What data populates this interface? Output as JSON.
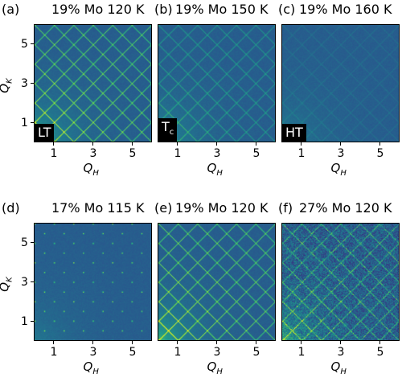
{
  "figure": {
    "axis": {
      "xlabel": "Q_H",
      "ylabel": "Q_K",
      "ticks": [
        "1",
        "3",
        "5"
      ],
      "range": [
        0,
        6
      ]
    },
    "panels": [
      {
        "label": "(a)",
        "title": "19% Mo 120 K",
        "phase": "LT",
        "pattern": "grid",
        "intensity": 1.0,
        "speckle": 0.05
      },
      {
        "label": "(b)",
        "title": "19% Mo 150 K",
        "phase": "T",
        "phase_sub": "c",
        "pattern": "grid",
        "intensity": 0.55,
        "speckle": 0.05
      },
      {
        "label": "(c)",
        "title": "19% Mo 160 K",
        "phase": "HT",
        "pattern": "grid",
        "intensity": 0.18,
        "speckle": 0.05
      },
      {
        "label": "(d)",
        "title": "17% Mo 115 K",
        "phase": "",
        "pattern": "dots",
        "intensity": 1.0,
        "speckle": 0.05
      },
      {
        "label": "(e)",
        "title": "19% Mo 120 K",
        "phase": "",
        "pattern": "grid",
        "intensity": 1.0,
        "speckle": 0.05
      },
      {
        "label": "(f)",
        "title": "27% Mo 120 K",
        "phase": "",
        "pattern": "grid",
        "intensity": 0.8,
        "speckle": 0.35
      }
    ]
  },
  "chart_data": {
    "type": "heatmap",
    "xlabel": "Q_H",
    "ylabel": "Q_K",
    "xlim": [
      0,
      6
    ],
    "ylim": [
      0,
      6
    ],
    "xticks": [
      1,
      3,
      5
    ],
    "yticks": [
      1,
      3,
      5
    ],
    "panels": [
      {
        "label": "(a)",
        "title": "19% Mo 120 K",
        "phase": "LT"
      },
      {
        "label": "(b)",
        "title": "19% Mo 150 K",
        "phase": "Tc"
      },
      {
        "label": "(c)",
        "title": "19% Mo 160 K",
        "phase": "HT"
      },
      {
        "label": "(d)",
        "title": "17% Mo 115 K"
      },
      {
        "label": "(e)",
        "title": "19% Mo 120 K"
      },
      {
        "label": "(f)",
        "title": "27% Mo 120 K"
      }
    ]
  }
}
